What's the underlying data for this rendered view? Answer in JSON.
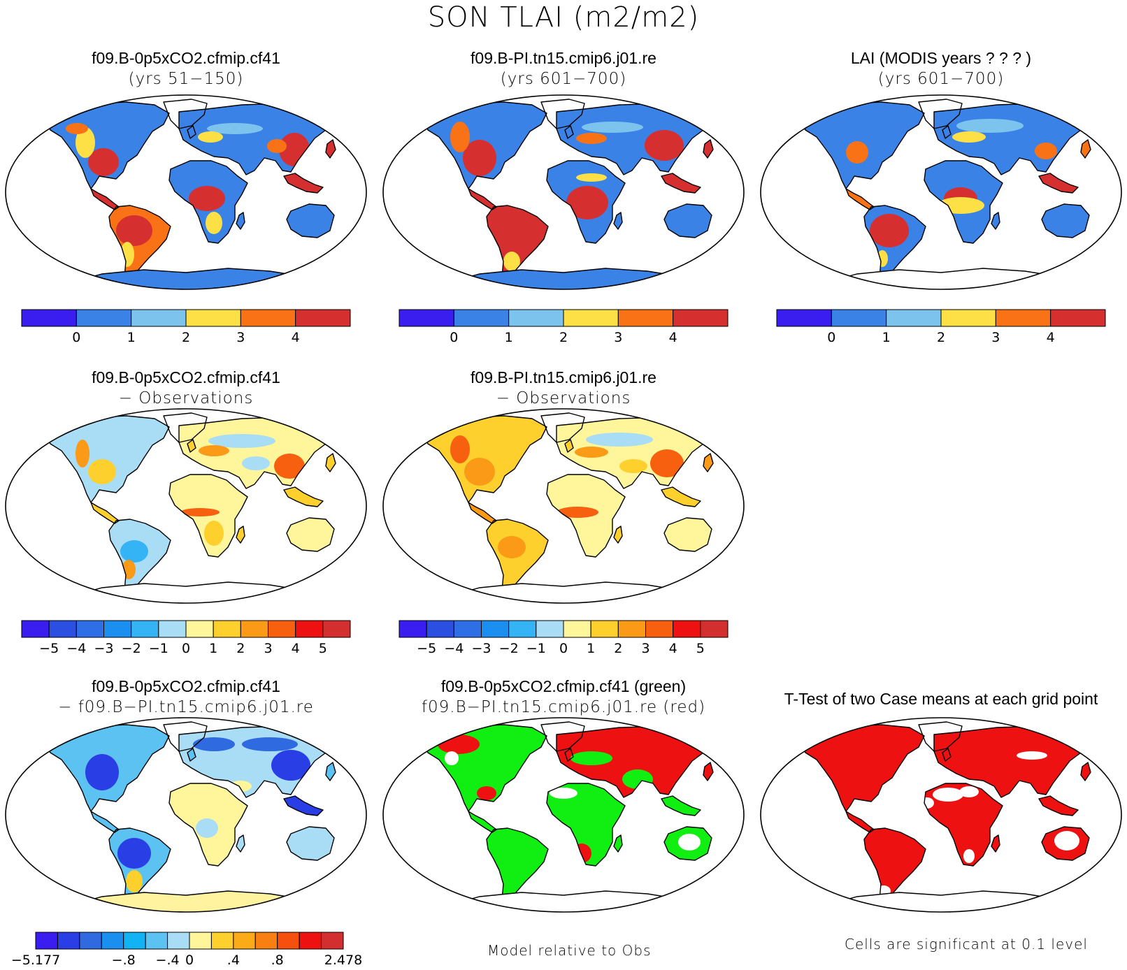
{
  "title": "SON TLAI (m2/m2)",
  "panels": [
    {
      "id": "p1",
      "line1": "f09.B-0p5xCO2.cfmip.cf41",
      "line2": "(yrs 51−150)",
      "scheme": "abs",
      "antarctica": "#3b82e6"
    },
    {
      "id": "p2",
      "line1": "f09.B-PI.tn15.cmip6.j01.re",
      "line2": "(yrs 601−700)",
      "scheme": "abs2",
      "antarctica": "#3b82e6"
    },
    {
      "id": "p3",
      "line1": "LAI (MODIS years ? ? ? )",
      "line2": "(yrs 601−700)",
      "scheme": "obs",
      "antarctica": "#ffffff"
    },
    {
      "id": "p4",
      "line1": "f09.B-0p5xCO2.cfmip.cf41",
      "line2": "− Observations",
      "scheme": "diff",
      "antarctica": "#ffffff"
    },
    {
      "id": "p5",
      "line1": "f09.B-PI.tn15.cmip6.j01.re",
      "line2": "− Observations",
      "scheme": "diff2",
      "antarctica": "#ffffff"
    },
    {
      "id": "p6",
      "line1": "f09.B-0p5xCO2.cfmip.cf41",
      "line2": "− f09.B−PI.tn15.cmip6.j01.re",
      "scheme": "casediff",
      "antarctica": "#fff3a0"
    },
    {
      "id": "p7",
      "line1": "f09.B-0p5xCO2.cfmip.cf41 (green)",
      "line2": "f09.B−PI.tn15.cmip6.j01.re (red)",
      "scheme": "greenred",
      "antarctica": "#ffffff"
    },
    {
      "id": "p8",
      "line1": "T-Test of two Case means at each grid point",
      "line2": "",
      "scheme": "ttest",
      "antarctica": "#ffffff"
    }
  ],
  "colorbars": {
    "abs": {
      "colors": [
        "#3a1ef0",
        "#3b82e6",
        "#7cc4ee",
        "#fde046",
        "#f97316",
        "#d62f2f"
      ],
      "labels": [
        "0",
        "1",
        "2",
        "3",
        "4"
      ]
    },
    "diff": {
      "colors": [
        "#3a1ef0",
        "#2b4fe0",
        "#2f6fe6",
        "#1a8ff0",
        "#34b4f5",
        "#a9dcf5",
        "#fff59a",
        "#fdd02e",
        "#fb9a16",
        "#f7600f",
        "#ee1111",
        "#d42f2f"
      ],
      "labels": [
        "−5",
        "−4",
        "−3",
        "−2",
        "−1",
        "0",
        "1",
        "2",
        "3",
        "4",
        "5"
      ]
    },
    "casediff": {
      "colors": [
        "#3a1ef0",
        "#2a3ee6",
        "#2f6ae0",
        "#1a8ff0",
        "#12b3f5",
        "#5cc2f2",
        "#a9dcf5",
        "#fff59a",
        "#fdd02e",
        "#fbaa18",
        "#f88012",
        "#f5500e",
        "#ee1111",
        "#d42f2f"
      ],
      "labels": [
        "−5.177",
        "−.8",
        "−.4",
        "0",
        ".4",
        ".8",
        "2.478"
      ]
    }
  },
  "notes": {
    "model_relative": "Model relative to Obs",
    "significance": "Cells are significant at 0.1 level"
  }
}
